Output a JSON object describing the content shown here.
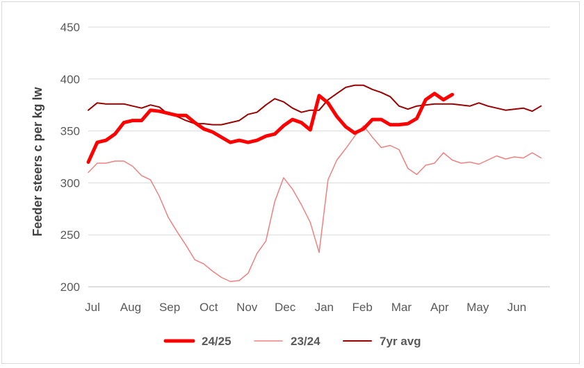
{
  "chart_data": {
    "type": "line",
    "title": "",
    "xlabel": "",
    "ylabel": "Feeder steers c per kg lw",
    "ylim": [
      200,
      450
    ],
    "yticks": [
      200,
      250,
      300,
      350,
      400,
      450
    ],
    "x_range": [
      0,
      52
    ],
    "xticks": [
      {
        "label": "Jul",
        "x": 0
      },
      {
        "label": "Aug",
        "x": 4.3
      },
      {
        "label": "Sep",
        "x": 8.7
      },
      {
        "label": "Oct",
        "x": 13.1
      },
      {
        "label": "Nov",
        "x": 17.4
      },
      {
        "label": "Dec",
        "x": 21.7
      },
      {
        "label": "Jan",
        "x": 26.1
      },
      {
        "label": "Feb",
        "x": 30.4
      },
      {
        "label": "Mar",
        "x": 34.8
      },
      {
        "label": "Apr",
        "x": 39.1
      },
      {
        "label": "May",
        "x": 43.4
      },
      {
        "label": "Jun",
        "x": 47.8
      }
    ],
    "grid": true,
    "legend_position": "bottom",
    "series": [
      {
        "name": "24/25",
        "color": "#ff0000",
        "weight": "thick",
        "x": [
          0,
          1,
          2,
          3,
          4,
          5,
          6,
          7,
          8,
          9,
          10,
          11,
          12,
          13,
          14,
          15,
          16,
          17,
          18,
          19,
          20,
          21,
          22,
          23,
          24,
          25,
          26,
          27,
          28,
          29,
          30,
          31,
          32,
          33,
          34,
          35,
          36,
          37,
          38,
          39,
          40,
          41,
          42
        ],
        "values": [
          320,
          339,
          341,
          347,
          358,
          360,
          360,
          370,
          369,
          367,
          365,
          365,
          358,
          352,
          349,
          344,
          339,
          341,
          339,
          341,
          345,
          347,
          355,
          361,
          358,
          351,
          384,
          377,
          364,
          354,
          348,
          352,
          361,
          361,
          356,
          356,
          357,
          362,
          380,
          386,
          380,
          385,
          null
        ]
      },
      {
        "name": "23/24",
        "color": "#f08080",
        "weight": "thin",
        "x": [
          0,
          1,
          2,
          3,
          4,
          5,
          6,
          7,
          8,
          9,
          10,
          11,
          12,
          13,
          14,
          15,
          16,
          17,
          18,
          19,
          20,
          21,
          22,
          23,
          24,
          25,
          26,
          27,
          28,
          29,
          30,
          31,
          32,
          33,
          34,
          35,
          36,
          37,
          38,
          39,
          40,
          41,
          42,
          43,
          44,
          45,
          46,
          47,
          48,
          49,
          50,
          51
        ],
        "values": [
          310,
          319,
          319,
          321,
          321,
          316,
          307,
          303,
          287,
          267,
          253,
          240,
          226,
          222,
          215,
          209,
          205,
          206,
          213,
          232,
          244,
          282,
          305,
          294,
          279,
          262,
          233,
          303,
          322,
          333,
          345,
          355,
          344,
          334,
          336,
          332,
          314,
          308,
          317,
          319,
          329,
          322,
          319,
          320,
          318,
          322,
          326,
          323,
          325,
          324,
          329,
          324
        ]
      },
      {
        "name": "7yr avg",
        "color": "#990000",
        "weight": "medium",
        "x": [
          0,
          1,
          2,
          3,
          4,
          5,
          6,
          7,
          8,
          9,
          10,
          11,
          12,
          13,
          14,
          15,
          16,
          17,
          18,
          19,
          20,
          21,
          22,
          23,
          24,
          25,
          26,
          27,
          28,
          29,
          30,
          31,
          32,
          33,
          34,
          35,
          36,
          37,
          38,
          39,
          40,
          41,
          42,
          43,
          44,
          45,
          46,
          47,
          48,
          49,
          50,
          51
        ],
        "values": [
          370,
          377,
          376,
          376,
          376,
          374,
          372,
          375,
          373,
          366,
          364,
          360,
          357,
          357,
          356,
          356,
          358,
          360,
          366,
          368,
          375,
          381,
          378,
          372,
          368,
          370,
          370,
          380,
          386,
          392,
          394,
          394,
          390,
          387,
          383,
          374,
          371,
          374,
          375,
          376,
          376,
          376,
          375,
          374,
          377,
          374,
          372,
          370,
          371,
          372,
          369,
          374
        ]
      }
    ]
  }
}
